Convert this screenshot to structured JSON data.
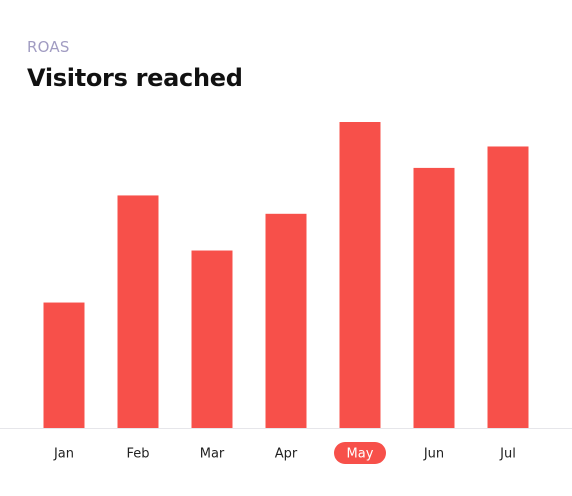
{
  "header": {
    "eyebrow": "ROAS",
    "title": "Visitors reached"
  },
  "colors": {
    "bar": "#f7504a",
    "active_pill": "#f7504a",
    "baseline": "#e6e6ea",
    "eyebrow": "#a19cc2"
  },
  "chart_data": {
    "type": "bar",
    "title": "Visitors reached",
    "xlabel": "",
    "ylabel": "",
    "categories": [
      "Jan",
      "Feb",
      "Mar",
      "Apr",
      "May",
      "Jun",
      "Jul"
    ],
    "values": [
      41,
      76,
      58,
      70,
      100,
      85,
      92
    ],
    "ylim": [
      0,
      100
    ],
    "highlighted_category": "May",
    "grid": false
  }
}
